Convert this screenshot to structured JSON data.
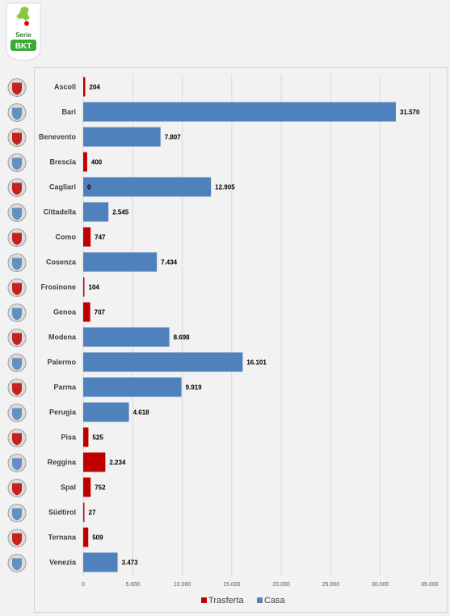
{
  "logo": {
    "line1": "Serie",
    "line2": "BKT"
  },
  "colors": {
    "trasferta": "#c00000",
    "casa": "#4f81bd",
    "grid": "#d9d9d9",
    "crest_fill": "#dcdcdc"
  },
  "chart_data": {
    "type": "bar",
    "orientation": "horizontal",
    "title": "",
    "xlabel": "",
    "ylabel": "",
    "categories": [
      "Ascoli",
      "Bari",
      "Benevento",
      "Brescia",
      "Cagliari",
      "Cittadella",
      "Como",
      "Cosenza",
      "Frosinone",
      "Genoa",
      "Modena",
      "Palermo",
      "Parma",
      "Perugia",
      "Pisa",
      "Reggina",
      "Spal",
      "Südtirol",
      "Ternana",
      "Venezia"
    ],
    "series": [
      {
        "name": "Trasferta",
        "values": [
          204,
          0,
          0,
          400,
          0,
          0,
          747,
          0,
          104,
          707,
          0,
          0,
          0,
          0,
          525,
          2234,
          752,
          27,
          509,
          0
        ]
      },
      {
        "name": "Casa",
        "values": [
          0,
          31570,
          7807,
          0,
          12905,
          2545,
          0,
          7434,
          0,
          0,
          8698,
          16101,
          9919,
          4618,
          0,
          0,
          0,
          0,
          0,
          3473
        ]
      }
    ],
    "data_labels": [
      "204",
      "31.570",
      "7.807",
      "400",
      "12.905",
      "2.545",
      "747",
      "7.434",
      "104",
      "707",
      "8.698",
      "16.101",
      "9.919",
      "4.618",
      "525",
      "2.234",
      "752",
      "27",
      "509",
      "3.473"
    ],
    "extra_labels": [
      {
        "category": "Cagliari",
        "text": "0"
      }
    ],
    "xlim": [
      0,
      35000
    ],
    "x_ticks": [
      0,
      5000,
      10000,
      15000,
      20000,
      25000,
      30000,
      35000
    ],
    "x_tick_labels": [
      "0",
      "5.000",
      "10.000",
      "15.000",
      "20.000",
      "25.000",
      "30.000",
      "35.000"
    ],
    "grid": true,
    "legend_position": "bottom"
  }
}
